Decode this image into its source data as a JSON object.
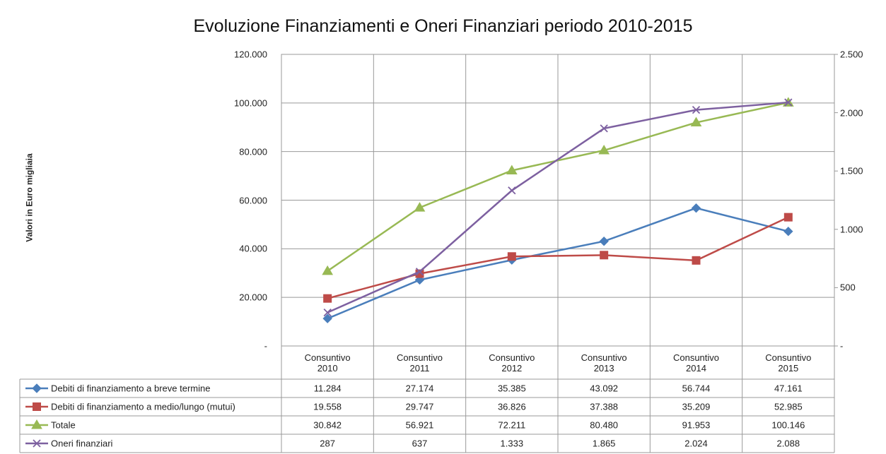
{
  "chart_data": {
    "type": "line",
    "title": "Evoluzione Finanziamenti e Oneri Finanziari periodo 2010-2015",
    "ylabel": "Valori in Euro migliaia",
    "categories": [
      "Consuntivo 2010",
      "Consuntivo 2011",
      "Consuntivo 2012",
      "Consuntivo 2013",
      "Consuntivo 2014",
      "Consuntivo 2015"
    ],
    "series": [
      {
        "name": "Debiti di finanziamento a breve termine",
        "color": "#4a7ebb",
        "marker": "diamond",
        "values": [
          11284,
          27174,
          35385,
          43092,
          56744,
          47161
        ],
        "value_labels": [
          "11.284",
          "27.174",
          "35.385",
          "43.092",
          "56.744",
          "47.161"
        ]
      },
      {
        "name": "Debiti di finanziamento a medio/lungo (mutui)",
        "color": "#be4b48",
        "marker": "square",
        "values": [
          19558,
          29747,
          36826,
          37388,
          35209,
          52985
        ],
        "value_labels": [
          "19.558",
          "29.747",
          "36.826",
          "37.388",
          "35.209",
          "52.985"
        ]
      },
      {
        "name": "Totale",
        "color": "#98b954",
        "marker": "triangle",
        "values": [
          30842,
          56921,
          72211,
          80480,
          91953,
          100146
        ],
        "value_labels": [
          "30.842",
          "56.921",
          "72.211",
          "80.480",
          "91.953",
          "100.146"
        ]
      },
      {
        "name": "Oneri finanziari",
        "color": "#7d60a0",
        "marker": "x",
        "axis": "y2",
        "values": [
          287,
          637,
          1333,
          1865,
          2024,
          2088
        ],
        "value_labels": [
          "287",
          "637",
          "1.333",
          "1.865",
          "2.024",
          "2.088"
        ]
      }
    ],
    "ylim": [
      0,
      120000
    ],
    "yticks": [
      {
        "value": 0,
        "label": "-"
      },
      {
        "value": 20000,
        "label": "20.000"
      },
      {
        "value": 40000,
        "label": "40.000"
      },
      {
        "value": 60000,
        "label": "60.000"
      },
      {
        "value": 80000,
        "label": "80.000"
      },
      {
        "value": 100000,
        "label": "100.000"
      },
      {
        "value": 120000,
        "label": "120.000"
      }
    ],
    "y2lim": [
      0,
      2500
    ],
    "y2ticks": [
      {
        "value": 0,
        "label": "-"
      },
      500,
      {
        "value": 1000,
        "label": "1.000"
      },
      {
        "value": 1500,
        "label": "1.500"
      },
      {
        "value": 2000,
        "label": "2.000"
      },
      {
        "value": 2500,
        "label": "2.500"
      }
    ],
    "grid": true
  }
}
